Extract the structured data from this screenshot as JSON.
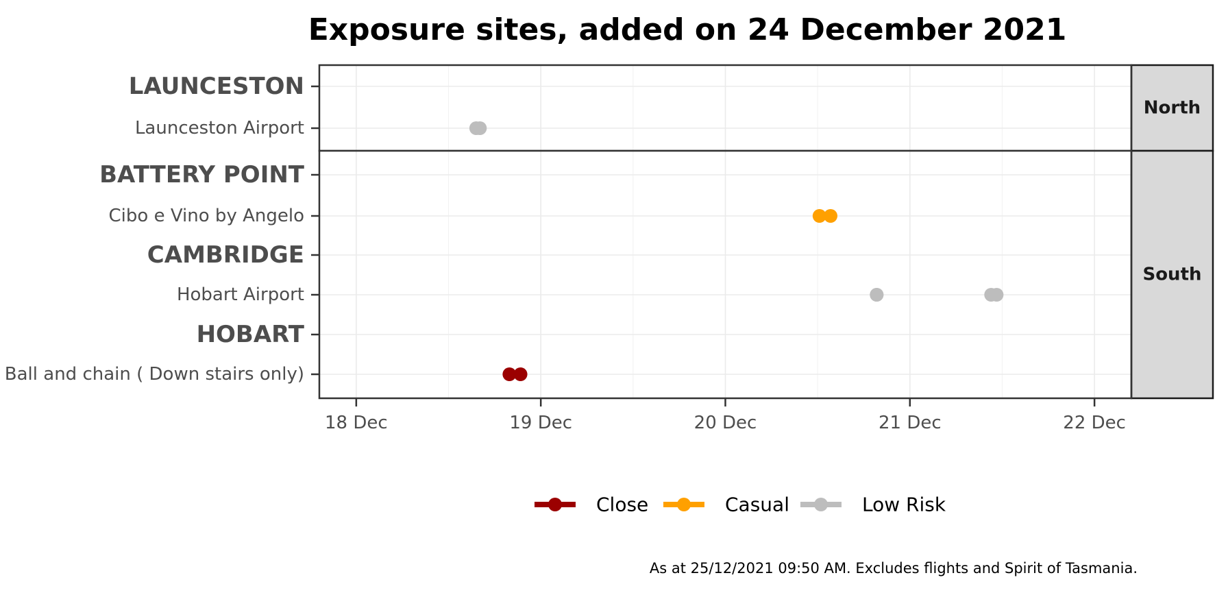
{
  "chart_data": {
    "type": "scatter",
    "title": "Exposure sites, added on 24 December 2021",
    "caption": "As at 25/12/2021 09:50 AM. Excludes flights and Spirit of Tasmania.",
    "x_ticks": [
      "18 Dec",
      "19 Dec",
      "20 Dec",
      "21 Dec",
      "22 Dec"
    ],
    "x_tick_values": [
      18,
      19,
      20,
      21,
      22
    ],
    "xlim": [
      17.8,
      22.2
    ],
    "grid": true,
    "legend_position": "bottom",
    "legend": [
      {
        "name": "Close",
        "color": "#9b0000"
      },
      {
        "name": "Casual",
        "color": "#ffa000"
      },
      {
        "name": "Low Risk",
        "color": "#bdbdbd"
      }
    ],
    "panels": [
      {
        "strip": "North",
        "rows": [
          {
            "label": "LAUNCESTON",
            "bold": true
          },
          {
            "label": "Launceston Airport",
            "bold": false
          }
        ]
      },
      {
        "strip": "South",
        "rows": [
          {
            "label": "BATTERY POINT",
            "bold": true
          },
          {
            "label": "Cibo e Vino by Angelo",
            "bold": false
          },
          {
            "label": "CAMBRIDGE",
            "bold": true
          },
          {
            "label": "Hobart Airport",
            "bold": false
          },
          {
            "label": "HOBART",
            "bold": true
          },
          {
            "label": "Ball and chain ( Down stairs only)",
            "bold": false
          }
        ]
      }
    ],
    "points": [
      {
        "panel": 0,
        "row": 1,
        "x_start": 18.65,
        "x_end": 18.67,
        "risk": "Low Risk"
      },
      {
        "panel": 1,
        "row": 1,
        "x_start": 20.51,
        "x_end": 20.57,
        "risk": "Casual"
      },
      {
        "panel": 1,
        "row": 3,
        "x_start": 20.82,
        "x_end": 20.82,
        "risk": "Low Risk"
      },
      {
        "panel": 1,
        "row": 3,
        "x_start": 21.44,
        "x_end": 21.47,
        "risk": "Low Risk"
      },
      {
        "panel": 1,
        "row": 5,
        "x_start": 18.83,
        "x_end": 18.89,
        "risk": "Close"
      }
    ]
  }
}
